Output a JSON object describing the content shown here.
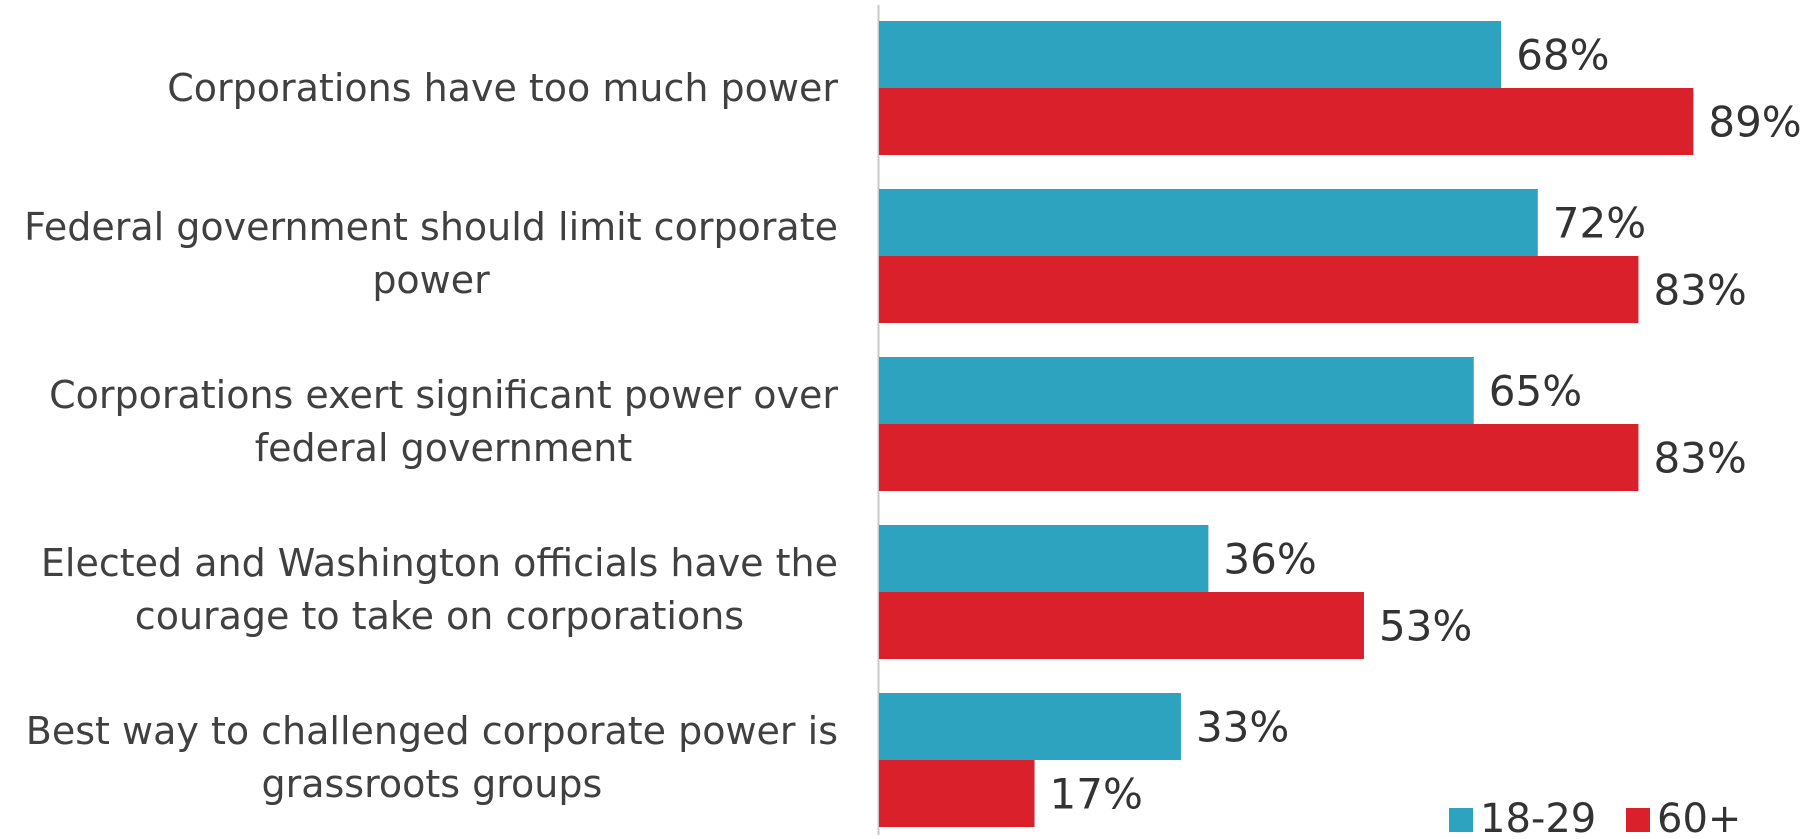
{
  "chart_data": {
    "type": "bar",
    "orientation": "horizontal",
    "categories": [
      "Corporations have too much power",
      "Federal government should limit corporate power",
      "Corporations exert significant power over federal government",
      "Elected and Washington officials have the courage to take on corporations",
      "Best way to challenged corporate power is grassroots groups"
    ],
    "series": [
      {
        "name": "18-29",
        "color": "#2EA3C0",
        "values": [
          68,
          72,
          65,
          36,
          33
        ],
        "labels": [
          "68%",
          "72%",
          "65%",
          "36%",
          "33%"
        ]
      },
      {
        "name": "60+",
        "color": "#D9202B",
        "values": [
          89,
          83,
          83,
          53,
          17
        ],
        "labels": [
          "89%",
          "83%",
          "83%",
          "53%",
          "17%"
        ]
      }
    ],
    "xlim": [
      0,
      100
    ],
    "grid": false,
    "legend_position": "bottom-right",
    "title": "",
    "xlabel": "",
    "ylabel": ""
  }
}
